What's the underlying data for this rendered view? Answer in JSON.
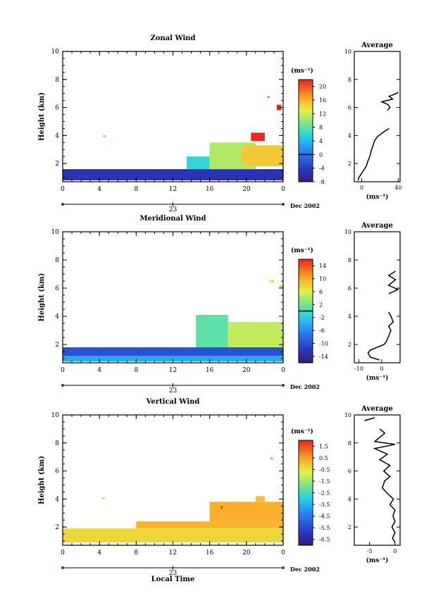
{
  "chart_data": [
    {
      "type": "heatmap",
      "title": "Zonal Wind",
      "ylabel": "Height (km)",
      "xlim": [
        0,
        24
      ],
      "ylim": [
        0.7,
        10
      ],
      "x_ticks": [
        "0",
        "4",
        "8",
        "12",
        "16",
        "20",
        "0"
      ],
      "y_ticks": [
        "2",
        "4",
        "6",
        "8",
        "10"
      ],
      "date_label": "23",
      "date_suffix": "Dec 2002",
      "colorbar": {
        "unit": "(ms⁻¹)",
        "min": -8,
        "max": 22,
        "ticks": [
          "-8",
          "-4",
          "0",
          "4",
          "8",
          "12",
          "16",
          "20"
        ],
        "zero_line": 0
      },
      "cells": [
        {
          "x0": 0,
          "x1": 24,
          "y0": 0.8,
          "y1": 1.6,
          "value": -5
        },
        {
          "x0": 4.4,
          "x1": 4.7,
          "y0": 3.9,
          "y1": 4.0,
          "value": 6
        },
        {
          "x0": 13.5,
          "x1": 16,
          "y0": 1.6,
          "y1": 2.5,
          "value": 6
        },
        {
          "x0": 16,
          "x1": 21,
          "y0": 1.6,
          "y1": 3.5,
          "value": 11
        },
        {
          "x0": 19.5,
          "x1": 24,
          "y0": 1.8,
          "y1": 3.3,
          "value": 15
        },
        {
          "x0": 20.5,
          "x1": 22,
          "y0": 3.6,
          "y1": 4.2,
          "value": 22
        },
        {
          "x0": 23.3,
          "x1": 23.8,
          "y0": 5.8,
          "y1": 6.2,
          "value": 22
        },
        {
          "x0": 22.3,
          "x1": 22.5,
          "y0": 6.7,
          "y1": 6.8,
          "value": 22
        }
      ],
      "average": {
        "title": "Average",
        "xlabel": "(ms⁻¹)",
        "xlim": [
          -8,
          42
        ],
        "x_ticks": [
          "0",
          "40"
        ],
        "ylim": [
          0.7,
          10
        ],
        "y_ticks": [
          "2",
          "4",
          "6",
          "8",
          "10"
        ],
        "profile": [
          [
            -4,
            0.8
          ],
          [
            -3,
            1.0
          ],
          [
            -1,
            1.2
          ],
          [
            1,
            1.4
          ],
          [
            3,
            1.6
          ],
          [
            5,
            1.8
          ],
          [
            6,
            2.0
          ],
          [
            7,
            2.2
          ],
          [
            9,
            2.5
          ],
          [
            10,
            2.8
          ],
          [
            12,
            3.2
          ],
          [
            14,
            3.6
          ],
          [
            17,
            3.9
          ],
          [
            25,
            4.3
          ],
          [
            30,
            4.5
          ],
          [
            null,
            4.8
          ],
          [
            28,
            5.8
          ],
          [
            31,
            6.0
          ],
          [
            29,
            6.2
          ],
          [
            22,
            6.4
          ],
          [
            34,
            6.6
          ],
          [
            30,
            6.8
          ],
          [
            38,
            7.0
          ],
          [
            40,
            7.1
          ]
        ]
      }
    },
    {
      "type": "heatmap",
      "title": "Meridional Wind",
      "ylabel": "Height (km)",
      "xlim": [
        0,
        24
      ],
      "ylim": [
        0.7,
        10
      ],
      "x_ticks": [
        "0",
        "4",
        "8",
        "12",
        "16",
        "20",
        "0"
      ],
      "y_ticks": [
        "2",
        "4",
        "6",
        "8",
        "10"
      ],
      "date_label": "23",
      "date_suffix": "Dec 2002",
      "colorbar": {
        "unit": "(ms⁻¹)",
        "min": -16,
        "max": 16,
        "ticks": [
          "-14",
          "-10",
          "-6",
          "-2",
          "2",
          "6",
          "10",
          "14"
        ],
        "zero_line": 0
      },
      "cells": [
        {
          "x0": 0,
          "x1": 24,
          "y0": 1.2,
          "y1": 1.8,
          "value": -10
        },
        {
          "x0": 0,
          "x1": 24,
          "y0": 0.8,
          "y1": 1.2,
          "value": -4
        },
        {
          "x0": 14.5,
          "x1": 18,
          "y0": 1.8,
          "y1": 4.1,
          "value": 1
        },
        {
          "x0": 18,
          "x1": 24,
          "y0": 1.8,
          "y1": 3.6,
          "value": 5
        },
        {
          "x0": 22.5,
          "x1": 23,
          "y0": 6.4,
          "y1": 6.6,
          "value": 6
        },
        {
          "x0": 23.6,
          "x1": 24,
          "y0": 6.0,
          "y1": 6.2,
          "value": 9
        }
      ],
      "average": {
        "title": "Average",
        "xlabel": "(ms⁻¹)",
        "xlim": [
          -12,
          8
        ],
        "x_ticks": [
          "-10",
          "0"
        ],
        "ylim": [
          0.7,
          10
        ],
        "y_ticks": [
          "2",
          "4",
          "6",
          "8",
          "10"
        ],
        "profile": [
          [
            -1,
            0.9
          ],
          [
            -5,
            1.1
          ],
          [
            -6,
            1.4
          ],
          [
            -5,
            1.6
          ],
          [
            -2,
            1.8
          ],
          [
            1,
            2.0
          ],
          [
            2,
            2.2
          ],
          [
            3,
            2.6
          ],
          [
            4,
            3.0
          ],
          [
            3,
            3.3
          ],
          [
            5,
            3.6
          ],
          [
            4,
            4.0
          ],
          [
            3,
            4.3
          ],
          [
            null,
            4.6
          ],
          [
            3,
            5.6
          ],
          [
            7,
            5.9
          ],
          [
            3,
            6.2
          ],
          [
            6,
            6.6
          ],
          [
            3,
            6.9
          ],
          [
            6,
            7.2
          ]
        ]
      }
    },
    {
      "type": "heatmap",
      "title": "Vertical Wind",
      "ylabel": "Height (km)",
      "xlabel": "Local Time",
      "xlim": [
        0,
        24
      ],
      "ylim": [
        0.7,
        10
      ],
      "x_ticks": [
        "0",
        "4",
        "8",
        "12",
        "16",
        "20",
        "0"
      ],
      "y_ticks": [
        "2",
        "4",
        "6",
        "8",
        "10"
      ],
      "date_label": "23",
      "date_suffix": "Dec 2002",
      "colorbar": {
        "unit": "(ms⁻¹)",
        "min": -7,
        "max": 2,
        "ticks": [
          "-6.5",
          "-5.5",
          "-4.5",
          "-3.5",
          "-2.5",
          "-1.5",
          "-0.5",
          "0.5",
          "1.5"
        ],
        "zero_line": null
      },
      "cells": [
        {
          "x0": 0,
          "x1": 24,
          "y0": 0.9,
          "y1": 1.9,
          "value": -0.3
        },
        {
          "x0": 8,
          "x1": 24,
          "y0": 1.9,
          "y1": 2.4,
          "value": 0.2
        },
        {
          "x0": 16,
          "x1": 24,
          "y0": 2.4,
          "y1": 3.8,
          "value": 0.3
        },
        {
          "x0": 21,
          "x1": 22,
          "y0": 3.8,
          "y1": 4.2,
          "value": 0.0
        },
        {
          "x0": 17.2,
          "x1": 17.4,
          "y0": 3.3,
          "y1": 3.5,
          "value": 1.8
        },
        {
          "x0": 22.6,
          "x1": 22.9,
          "y0": 6.8,
          "y1": 7.0,
          "value": -1.8
        },
        {
          "x0": 4.3,
          "x1": 4.6,
          "y0": 4.0,
          "y1": 4.1,
          "value": 0.2
        }
      ],
      "average": {
        "title": "Average",
        "xlabel": "(ms⁻¹)",
        "xlim": [
          -8,
          1
        ],
        "x_ticks": [
          "-5",
          "0"
        ],
        "ylim": [
          0.7,
          10
        ],
        "y_ticks": [
          "2",
          "4",
          "6",
          "8",
          "10"
        ],
        "profile": [
          [
            0,
            0.9
          ],
          [
            -0.5,
            1.2
          ],
          [
            0,
            1.6
          ],
          [
            -0.6,
            2.0
          ],
          [
            0,
            2.4
          ],
          [
            -0.4,
            2.8
          ],
          [
            0,
            3.2
          ],
          [
            -1,
            3.6
          ],
          [
            -0.3,
            4.0
          ],
          [
            -1.5,
            4.4
          ],
          [
            -2.5,
            4.8
          ],
          [
            -2,
            5.3
          ],
          [
            -1,
            5.6
          ],
          [
            -2.2,
            6.0
          ],
          [
            -1,
            6.4
          ],
          [
            -3,
            6.8
          ],
          [
            -1.5,
            7.2
          ],
          [
            -4,
            7.6
          ],
          [
            0,
            7.9
          ],
          [
            -4,
            8.1
          ],
          [
            -3,
            8.4
          ],
          [
            -2,
            8.7
          ],
          [
            -3,
            9.0
          ],
          [
            null,
            9.4
          ],
          [
            -6,
            9.6
          ],
          [
            -4,
            9.8
          ]
        ]
      }
    }
  ]
}
